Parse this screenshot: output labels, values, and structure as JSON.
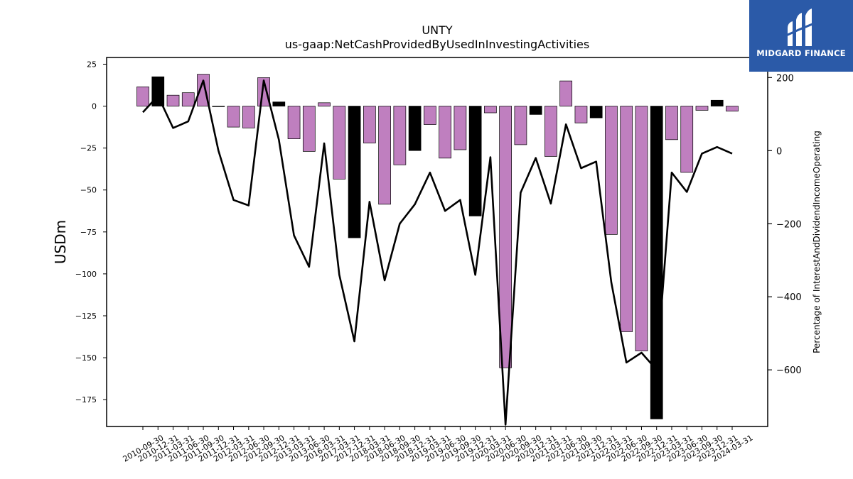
{
  "chart_data": {
    "type": "bar",
    "title": "UNTY",
    "subtitle": "us-gaap:NetCashProvidedByUsedInInvestingActivities",
    "ylabel": "USDm",
    "y2label": "Percentage of InterestAndDividendIncomeOperating",
    "ylim": [
      -191,
      29
    ],
    "y2lim": [
      -755,
      255
    ],
    "yticks": [
      25,
      0,
      -25,
      -50,
      -75,
      -100,
      -125,
      -150,
      -175
    ],
    "y2ticks": [
      200,
      0,
      -200,
      -400,
      -600
    ],
    "categories": [
      "2010-09-30",
      "2010-12-31",
      "2011-03-31",
      "2011-06-30",
      "2011-09-30",
      "2011-12-31",
      "2012-03-31",
      "2012-06-30",
      "2012-09-30",
      "2012-12-31",
      "2013-03-31",
      "2013-06-30",
      "2016-03-31",
      "2017-03-31",
      "2017-12-31",
      "2018-03-31",
      "2018-06-30",
      "2018-09-30",
      "2018-12-31",
      "2019-03-31",
      "2019-06-30",
      "2019-09-30",
      "2019-12-31",
      "2020-03-31",
      "2020-06-30",
      "2020-09-30",
      "2020-12-31",
      "2021-03-31",
      "2021-06-30",
      "2021-09-30",
      "2021-12-31",
      "2022-03-31",
      "2022-06-30",
      "2022-09-30",
      "2022-12-31",
      "2023-03-31",
      "2023-06-30",
      "2023-09-30",
      "2023-12-31",
      "2024-03-31"
    ],
    "series": [
      {
        "type": "bar",
        "values": [
          11.5,
          17.5,
          6.5,
          8.0,
          19.0,
          0.0,
          -12.5,
          -13.0,
          17.0,
          2.5,
          -19.5,
          -27.0,
          2.0,
          -43.5,
          -78.5,
          -22.0,
          -58.5,
          -35.0,
          -26.5,
          -11.0,
          -31.0,
          -26.0,
          -65.5,
          -4.0,
          -156.0,
          -23.0,
          -5.0,
          -30.0,
          15.0,
          -10.0,
          -7.0,
          -76.5,
          -134.5,
          -146.0,
          -186.5,
          -20.0,
          -39.5,
          -2.5,
          3.5,
          -3.0
        ],
        "colors": [
          "#bf7fbf",
          "#000000",
          "#bf7fbf",
          "#bf7fbf",
          "#bf7fbf",
          "#000000",
          "#bf7fbf",
          "#bf7fbf",
          "#bf7fbf",
          "#000000",
          "#bf7fbf",
          "#bf7fbf",
          "#bf7fbf",
          "#bf7fbf",
          "#000000",
          "#bf7fbf",
          "#bf7fbf",
          "#bf7fbf",
          "#000000",
          "#bf7fbf",
          "#bf7fbf",
          "#bf7fbf",
          "#000000",
          "#bf7fbf",
          "#bf7fbf",
          "#bf7fbf",
          "#000000",
          "#bf7fbf",
          "#bf7fbf",
          "#bf7fbf",
          "#000000",
          "#bf7fbf",
          "#bf7fbf",
          "#bf7fbf",
          "#000000",
          "#bf7fbf",
          "#bf7fbf",
          "#bf7fbf",
          "#000000",
          "#bf7fbf"
        ]
      },
      {
        "type": "line",
        "axis": "right",
        "color": "#000000",
        "values": [
          105,
          150,
          62,
          80,
          192,
          0,
          -135,
          -150,
          192,
          30,
          -232,
          -318,
          20,
          -340,
          -522,
          -140,
          -355,
          -200,
          -147,
          -60,
          -165,
          -135,
          -340,
          -18,
          -750,
          -115,
          -20,
          -145,
          72,
          -48,
          -30,
          -360,
          -580,
          -553,
          -600,
          -60,
          -113,
          -8,
          10,
          -8
        ]
      }
    ],
    "grid": false,
    "legend": "none"
  },
  "brand": {
    "name": "MIDGARD FINANCE",
    "background": "#2b5aa8",
    "icon": "midgard-logo-icon"
  }
}
